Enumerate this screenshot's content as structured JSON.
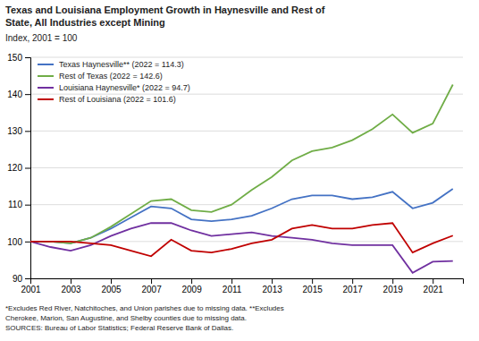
{
  "chart_data": {
    "type": "line",
    "title": [
      "Texas and Louisiana Employment Growth in Haynesville and Rest of",
      "State, All Industries except Mining"
    ],
    "subtitle": "Index, 2001 = 100",
    "annotations": [
      "*Excludes Red River, Natchitoches, and Union parishes due to missing data.  **Excludes",
      "Cherokee, Marion, San Augustine, and Shelby counties due to missing data.",
      "SOURCES: Bureau of Labor Statistics; Federal Reserve Bank of Dallas."
    ],
    "x": [
      2001,
      2002,
      2003,
      2004,
      2005,
      2006,
      2007,
      2008,
      2009,
      2010,
      2011,
      2012,
      2013,
      2014,
      2015,
      2016,
      2017,
      2018,
      2019,
      2020,
      2021,
      2022
    ],
    "series": [
      {
        "name": "Texas Haynesville** (2022 = 114.3)",
        "color": "#4472C4",
        "values": [
          100.0,
          100.0,
          99.5,
          101.0,
          103.5,
          106.5,
          109.5,
          109.0,
          106.0,
          105.5,
          106.0,
          107.0,
          109.0,
          111.5,
          112.5,
          112.5,
          111.5,
          112.0,
          113.5,
          109.0,
          110.5,
          114.3
        ]
      },
      {
        "name": "Rest of Texas (2022 = 142.6)",
        "color": "#70AD47",
        "values": [
          100.0,
          100.0,
          99.5,
          101.0,
          104.0,
          107.5,
          111.0,
          111.5,
          108.5,
          108.0,
          110.0,
          114.0,
          117.5,
          122.0,
          124.5,
          125.5,
          127.5,
          130.5,
          134.5,
          129.5,
          132.0,
          142.6
        ]
      },
      {
        "name": "Louisiana Haynesville* (2022 = 94.7)",
        "color": "#7030A0",
        "values": [
          100.0,
          98.5,
          97.5,
          99.0,
          101.5,
          103.5,
          105.0,
          105.0,
          103.0,
          101.5,
          102.0,
          102.5,
          101.5,
          101.0,
          100.5,
          99.5,
          99.0,
          99.0,
          99.0,
          91.5,
          94.5,
          94.7
        ]
      },
      {
        "name": "Rest of Louisiana (2022 = 101.6)",
        "color": "#C00000",
        "values": [
          100.0,
          100.0,
          100.0,
          99.5,
          99.0,
          97.5,
          96.0,
          100.5,
          97.5,
          97.0,
          98.0,
          99.5,
          100.5,
          103.5,
          104.5,
          103.5,
          103.5,
          104.5,
          105.0,
          97.0,
          99.5,
          101.6
        ]
      }
    ],
    "xlim": [
      2001,
      2022.5
    ],
    "xticks": [
      2001,
      2003,
      2005,
      2007,
      2009,
      2011,
      2013,
      2015,
      2017,
      2019,
      2021
    ],
    "ylim": [
      90,
      150
    ],
    "yticks": [
      90,
      100,
      110,
      120,
      130,
      140,
      150
    ],
    "grid": true,
    "legend": "upper left"
  }
}
